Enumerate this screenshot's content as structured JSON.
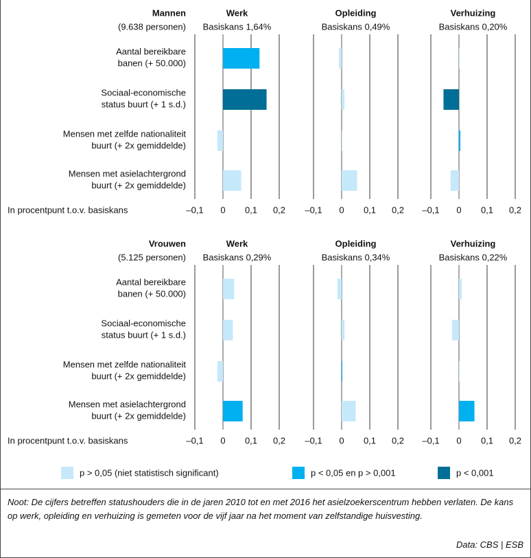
{
  "chart_data": [
    {
      "type": "bar",
      "title": "Mannen",
      "subtitle": "(9.638 personen)",
      "categories": [
        [
          "Aantal bereikbare",
          "banen (+ 50.000)"
        ],
        [
          "Sociaal-economische",
          "status buurt (+ 1 s.d.)"
        ],
        [
          "Mensen met zelfde nationaliteit",
          "buurt (+ 2x gemiddelde)"
        ],
        [
          "Mensen met asielachtergrond",
          "buurt (+ 2x gemiddelde)"
        ]
      ],
      "xlabel": "In procentpunt t.o.v. basiskans",
      "xlim": [
        -0.1,
        0.2
      ],
      "xticks": [
        {
          "value": -0.1,
          "label": "–0,1"
        },
        0,
        {
          "value": 0.1,
          "label": "0,1"
        },
        {
          "value": 0.2,
          "label": "0,2"
        }
      ],
      "panels": [
        {
          "title": "Werk",
          "subtitle": "Basiskans 1,64%",
          "values": [
            0.13,
            0.155,
            -0.02,
            0.065
          ],
          "colors": [
            "#00b0f0",
            "#006e96",
            "#c5e9fa",
            "#c5e9fa"
          ]
        },
        {
          "title": "Opleiding",
          "subtitle": "Basiskans 0,49%",
          "values": [
            -0.01,
            0.01,
            0,
            0.055
          ],
          "colors": [
            "#c5e9fa",
            "#c5e9fa",
            "#c5e9fa",
            "#c5e9fa"
          ]
        },
        {
          "title": "Verhuizing",
          "subtitle": "Basiskans 0,20%",
          "values": [
            0,
            -0.055,
            0.005,
            -0.03
          ],
          "colors": [
            "#c5e9fa",
            "#006e96",
            "#00b0f0",
            "#c5e9fa"
          ]
        }
      ]
    },
    {
      "type": "bar",
      "title": "Vrouwen",
      "subtitle": "(5.125 personen)",
      "categories": [
        [
          "Aantal bereikbare",
          "banen (+ 50.000)"
        ],
        [
          "Sociaal-economische",
          "status buurt (+ 1 s.d.)"
        ],
        [
          "Mensen met zelfde nationaliteit",
          "buurt (+ 2x gemiddelde)"
        ],
        [
          "Mensen met asielachtergrond",
          "buurt (+ 2x gemiddelde)"
        ]
      ],
      "xlabel": "In procentpunt t.o.v. basiskans",
      "xlim": [
        -0.1,
        0.2
      ],
      "xticks": [
        {
          "value": -0.1,
          "label": "–0,1"
        },
        0,
        {
          "value": 0.1,
          "label": "0,1"
        },
        {
          "value": 0.2,
          "label": "0,2"
        }
      ],
      "panels": [
        {
          "title": "Werk",
          "subtitle": "Basiskans 0,29%",
          "values": [
            0.04,
            0.035,
            -0.02,
            0.07
          ],
          "colors": [
            "#c5e9fa",
            "#c5e9fa",
            "#c5e9fa",
            "#00b0f0"
          ]
        },
        {
          "title": "Opleiding",
          "subtitle": "Basiskans 0,34%",
          "values": [
            -0.015,
            0.01,
            0,
            0.05
          ],
          "colors": [
            "#c5e9fa",
            "#c5e9fa",
            "#00b0f0",
            "#c5e9fa"
          ]
        },
        {
          "title": "Verhuizing",
          "subtitle": "Basiskans 0,22%",
          "values": [
            0.01,
            -0.025,
            0,
            0.055
          ],
          "colors": [
            "#c5e9fa",
            "#c5e9fa",
            "#c5e9fa",
            "#00b0f0"
          ]
        }
      ]
    }
  ],
  "legend": [
    {
      "label": "p > 0,05 (niet statistisch significant)",
      "color": "#c5e9fa"
    },
    {
      "label": "p < 0,05 en p > 0,001",
      "color": "#00b0f0"
    },
    {
      "label": "p < 0,001",
      "color": "#006e96"
    }
  ],
  "note": "Noot: De cijfers betreffen statushouders die in de jaren 2010 tot en met 2016 het asielzoekerscentrum hebben verlaten. De kans op werk, opleiding en verhuizing is gemeten voor de vijf jaar na het moment van zelfstandige huisvesting.",
  "source": "Data: CBS | ESB"
}
